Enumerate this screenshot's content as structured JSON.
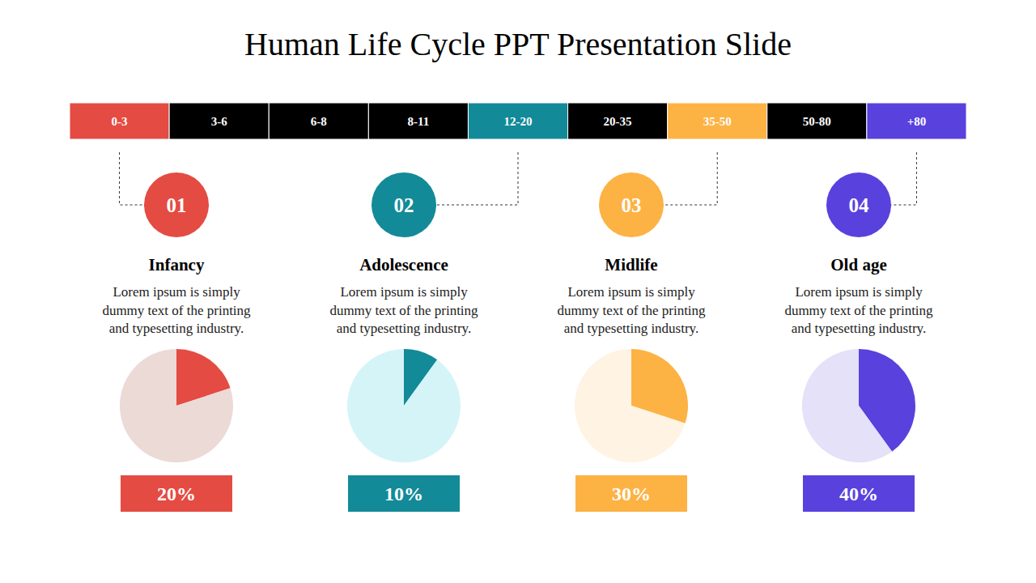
{
  "title": "Human Life Cycle PPT Presentation Slide",
  "timeline": [
    {
      "label": "0-3",
      "color": "#e44b43"
    },
    {
      "label": "3-6",
      "color": "#000000"
    },
    {
      "label": "6-8",
      "color": "#000000"
    },
    {
      "label": "8-11",
      "color": "#000000"
    },
    {
      "label": "12-20",
      "color": "#138a98"
    },
    {
      "label": "20-35",
      "color": "#000000"
    },
    {
      "label": "35-50",
      "color": "#fdb244"
    },
    {
      "label": "50-80",
      "color": "#000000"
    },
    {
      "label": "+80",
      "color": "#5941de"
    }
  ],
  "stages": [
    {
      "number": "01",
      "heading": "Infancy",
      "color": "#e44b43",
      "linked_segment": "0-3",
      "text": [
        "Lorem ipsum is simply",
        "dummy text of the printing",
        "and typesetting industry."
      ]
    },
    {
      "number": "02",
      "heading": "Adolescence",
      "color": "#138a98",
      "linked_segment": "12-20",
      "text": [
        "Lorem ipsum is simply",
        "dummy text of the printing",
        "and typesetting industry."
      ]
    },
    {
      "number": "03",
      "heading": "Midlife",
      "color": "#fdb244",
      "linked_segment": "35-50",
      "text": [
        "Lorem ipsum is simply",
        "dummy text of the printing",
        "and typesetting industry."
      ]
    },
    {
      "number": "04",
      "heading": "Old age",
      "color": "#5941de",
      "linked_segment": "+80",
      "text": [
        "Lorem ipsum is simply",
        "dummy text of the printing",
        "and typesetting industry."
      ]
    }
  ],
  "chart_data": [
    {
      "type": "pie",
      "values": [
        20,
        80
      ],
      "value_labels": [
        "20%",
        null
      ],
      "colors": [
        "#e44b43",
        "#ecdad7"
      ]
    },
    {
      "type": "pie",
      "values": [
        10,
        90
      ],
      "value_labels": [
        "10%",
        null
      ],
      "colors": [
        "#138a98",
        "#d4f4f8"
      ]
    },
    {
      "type": "pie",
      "values": [
        30,
        70
      ],
      "value_labels": [
        "30%",
        null
      ],
      "colors": [
        "#fdb244",
        "#fff3e3"
      ]
    },
    {
      "type": "pie",
      "values": [
        40,
        60
      ],
      "value_labels": [
        "40%",
        null
      ],
      "colors": [
        "#5941de",
        "#e4e1f8"
      ]
    }
  ]
}
